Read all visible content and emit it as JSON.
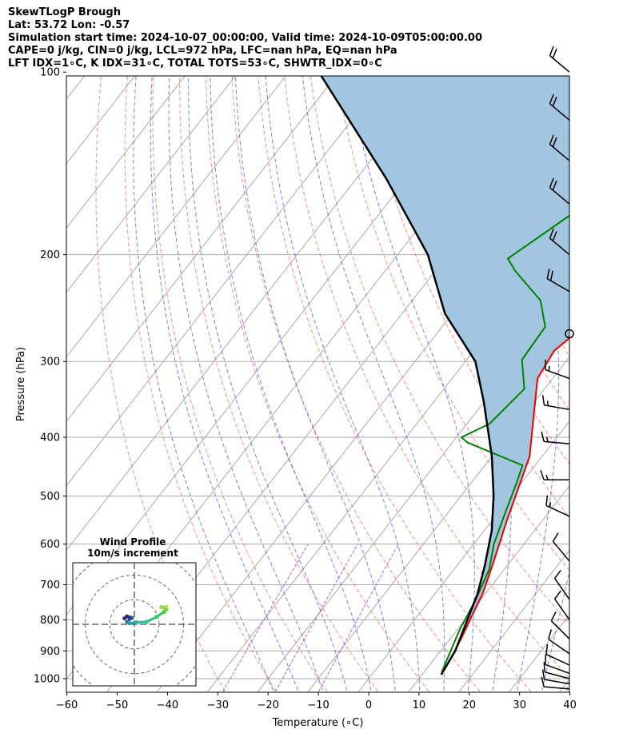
{
  "header": {
    "title": "SkewTLogP Brough",
    "latlon": "Lat: 53.72   Lon: -0.57",
    "times": "Simulation start time: 2024-10-07_00:00:00, Valid time: 2024-10-09T05:00:00.00",
    "indices1": "CAPE=0 j/kg, CIN=0 j/kg, LCL=972 hPa, LFC=nan hPa, EQ=nan hPa",
    "indices2": "LFT IDX=1∘C, K IDX=31∘C, TOTAL TOTS=53∘C, SHWTR_IDX=0∘C"
  },
  "chart_data": {
    "type": "line",
    "subtype": "skew-T log-P diagram",
    "xlabel": "Temperature (∘C)",
    "ylabel": "Pressure (hPa)",
    "xlim": [
      -60,
      40
    ],
    "ylim": [
      1050,
      100
    ],
    "x_ticks": [
      "−60",
      "−50",
      "−40",
      "−30",
      "−20",
      "−10",
      "0",
      "10",
      "20",
      "30",
      "40"
    ],
    "x_tick_values": [
      -60,
      -50,
      -40,
      -30,
      -20,
      -10,
      0,
      10,
      20,
      30,
      40
    ],
    "y_ticks": [
      "100",
      "200",
      "300",
      "400",
      "500",
      "600",
      "700",
      "800",
      "900",
      "1000"
    ],
    "y_tick_values": [
      100,
      200,
      300,
      400,
      500,
      600,
      700,
      800,
      900,
      1000
    ],
    "y_scale": "log",
    "grid": true,
    "colors": {
      "temperature": "#ee0000",
      "dewpoint": "#008000",
      "parcel": "#000000",
      "cin_fill": "#a2c6df",
      "dry_adiabat": "#ff5555",
      "moist_adiabat": "#4455ff",
      "mixing_ratio": "#9944cc",
      "isotherm": "#aaaaaa"
    },
    "series": [
      {
        "role": "temperature",
        "points": [
          [
            13.7,
            975
          ],
          [
            13.2,
            925
          ],
          [
            12.0,
            850
          ],
          [
            10.5,
            775
          ],
          [
            9.5,
            725
          ],
          [
            7.0,
            650
          ],
          [
            3.0,
            550
          ],
          [
            -2.5,
            430
          ],
          [
            -13.0,
            320
          ],
          [
            -14.0,
            288
          ],
          [
            -12.0,
            263
          ],
          [
            -3.0,
            243
          ],
          [
            0.5,
            228
          ],
          [
            2.5,
            213
          ],
          [
            5.0,
            188
          ],
          [
            7.5,
            163
          ],
          [
            10.0,
            143
          ],
          [
            13.0,
            118
          ],
          [
            14.5,
            104
          ],
          [
            15.5,
            100
          ]
        ]
      },
      {
        "role": "dewpoint",
        "points": [
          [
            13.5,
            975
          ],
          [
            12.5,
            925
          ],
          [
            10.5,
            830
          ],
          [
            9.0,
            740
          ],
          [
            7.0,
            660
          ],
          [
            4.0,
            600
          ],
          [
            1.5,
            535
          ],
          [
            -1.0,
            475
          ],
          [
            -2.5,
            445
          ],
          [
            -17.0,
            408
          ],
          [
            -19.0,
            400
          ],
          [
            -15.5,
            380
          ],
          [
            -14.0,
            333
          ],
          [
            -19.0,
            298
          ],
          [
            -19.5,
            263
          ],
          [
            -24.5,
            238
          ],
          [
            -34.0,
            213
          ],
          [
            -37.5,
            203
          ],
          [
            -30.0,
            163
          ],
          [
            -16.0,
            128
          ],
          [
            -5.0,
            100
          ]
        ]
      },
      {
        "role": "parcel",
        "points": [
          [
            13.8,
            985
          ],
          [
            12.9,
            900
          ],
          [
            10.5,
            800
          ],
          [
            8.5,
            725
          ],
          [
            5.5,
            650
          ],
          [
            1.5,
            570
          ],
          [
            -3.5,
            500
          ],
          [
            -10.0,
            430
          ],
          [
            -20.0,
            350
          ],
          [
            -28.0,
            300
          ],
          [
            -41.5,
            250
          ],
          [
            -54.0,
            200
          ],
          [
            -74.0,
            150
          ],
          [
            -104.0,
            100
          ]
        ]
      }
    ],
    "wind_barbs": [
      {
        "p": 100,
        "speed_kt": 20,
        "dir_deg": 310
      },
      {
        "p": 120,
        "speed_kt": 20,
        "dir_deg": 310
      },
      {
        "p": 140,
        "speed_kt": 20,
        "dir_deg": 310
      },
      {
        "p": 165,
        "speed_kt": 20,
        "dir_deg": 310
      },
      {
        "p": 200,
        "speed_kt": 20,
        "dir_deg": 310
      },
      {
        "p": 230,
        "speed_kt": 20,
        "dir_deg": 300
      },
      {
        "p": 270,
        "speed_kt": 0,
        "dir_deg": 0
      },
      {
        "p": 320,
        "speed_kt": 15,
        "dir_deg": 290
      },
      {
        "p": 360,
        "speed_kt": 15,
        "dir_deg": 280
      },
      {
        "p": 410,
        "speed_kt": 15,
        "dir_deg": 275
      },
      {
        "p": 470,
        "speed_kt": 15,
        "dir_deg": 270
      },
      {
        "p": 540,
        "speed_kt": 15,
        "dir_deg": 295
      },
      {
        "p": 640,
        "speed_kt": 10,
        "dir_deg": 320
      },
      {
        "p": 740,
        "speed_kt": 10,
        "dir_deg": 325
      },
      {
        "p": 800,
        "speed_kt": 10,
        "dir_deg": 325
      },
      {
        "p": 860,
        "speed_kt": 10,
        "dir_deg": 315
      },
      {
        "p": 910,
        "speed_kt": 10,
        "dir_deg": 305
      },
      {
        "p": 950,
        "speed_kt": 10,
        "dir_deg": 295
      },
      {
        "p": 980,
        "speed_kt": 10,
        "dir_deg": 290
      },
      {
        "p": 1000,
        "speed_kt": 10,
        "dir_deg": 285
      },
      {
        "p": 1020,
        "speed_kt": 10,
        "dir_deg": 280
      },
      {
        "p": 1040,
        "speed_kt": 10,
        "dir_deg": 275
      }
    ],
    "hodograph": {
      "title_line1": "Wind Profile",
      "title_line2": "10m/s increment",
      "rings_ms": [
        10,
        20,
        30
      ],
      "range_ms": 25,
      "points_uv": [
        [
          -2,
          1.2
        ],
        [
          -1.5,
          1.6
        ],
        [
          -1,
          1.4
        ],
        [
          -0.5,
          1.3
        ],
        [
          -1.5,
          0.5
        ],
        [
          -1,
          0.2
        ],
        [
          0.5,
          0.4
        ],
        [
          2.5,
          0.5
        ],
        [
          4.5,
          1.5
        ],
        [
          6.0,
          2.5
        ],
        [
          6.5,
          3.0
        ],
        [
          5.5,
          3.5
        ],
        [
          6.5,
          3.6
        ]
      ]
    }
  }
}
